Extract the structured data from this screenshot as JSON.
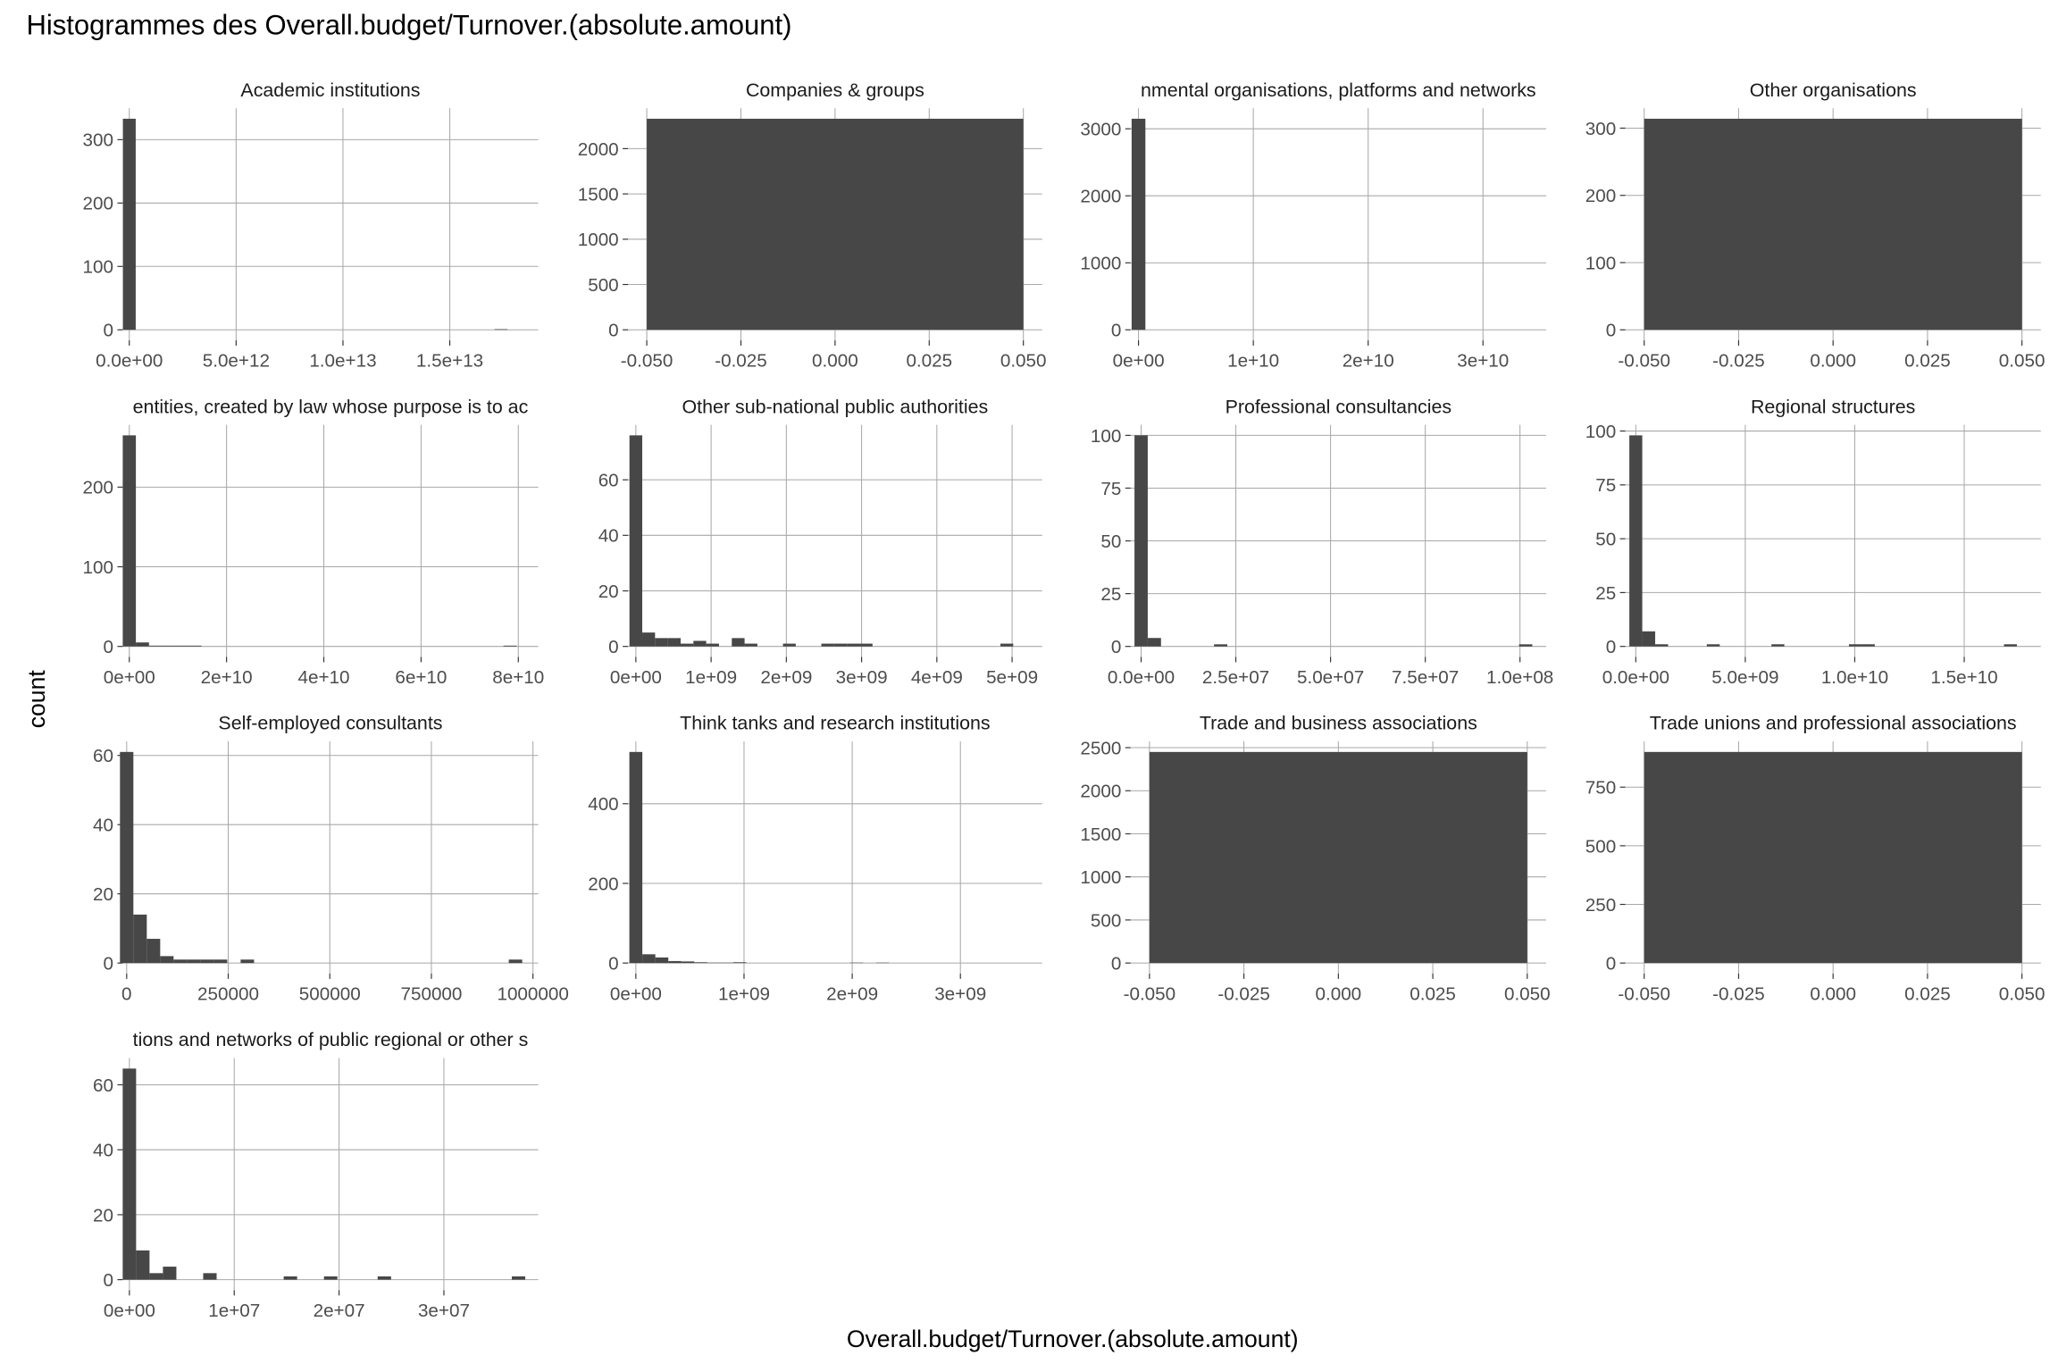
{
  "title": "Histogrammes des Overall.budget/Turnover.(absolute.amount)",
  "x_label": "Overall.budget/Turnover.(absolute.amount)",
  "y_label": "count",
  "chart_data": [
    {
      "type": "histogram",
      "title": "Academic institutions",
      "color": "#474747",
      "grid": true,
      "bins": [
        -300000000000.0,
        300000000000.0,
        900000000000.0,
        1500000000000.0,
        2100000000000.0,
        2700000000000.0,
        3300000000000.0,
        3900000000000.0,
        4500000000000.0,
        5100000000000.0,
        5700000000000.0,
        6300000000000.0,
        6900000000000.0,
        7500000000000.0,
        8100000000000.0,
        8700000000000.0,
        9300000000000.0,
        9900000000000.0,
        10500000000000.0,
        11100000000000.0,
        11700000000000.0,
        12300000000000.0,
        12900000000000.0,
        13500000000000.0,
        14100000000000.0,
        14700000000000.0,
        15300000000000.0,
        15900000000000.0,
        16500000000000.0,
        17100000000000.0,
        17700000000000.0
      ],
      "counts": [
        333,
        0,
        0,
        0,
        0,
        0,
        0,
        0,
        0,
        0,
        0,
        0,
        0,
        0,
        0,
        0,
        0,
        0,
        0,
        0,
        0,
        0,
        0,
        0,
        0,
        0,
        0,
        0,
        0,
        1
      ],
      "xlim": [
        -309000000000.0,
        19140000000000.0
      ],
      "ylim": [
        -16.65,
        349.65
      ],
      "xticks": [
        {
          "value": 0,
          "label": "0.0e+00"
        },
        {
          "value": 5000000000000.0,
          "label": "5.0e+12"
        },
        {
          "value": 10000000000000.0,
          "label": "1.0e+13"
        },
        {
          "value": 15000000000000.0,
          "label": "1.5e+13"
        }
      ],
      "yticks": [
        0,
        100,
        200,
        300
      ]
    },
    {
      "type": "histogram",
      "title": "Companies & groups",
      "color": "#474747",
      "grid": true,
      "bins": [
        -0.05,
        0.05
      ],
      "counts": [
        2330
      ],
      "xlim": [
        -0.055,
        0.055
      ],
      "ylim": [
        -116.5,
        2446.5
      ],
      "xticks": [
        {
          "value": -0.05,
          "label": "-0.050"
        },
        {
          "value": -0.025,
          "label": "-0.025"
        },
        {
          "value": 0,
          "label": "0.000"
        },
        {
          "value": 0.025,
          "label": "0.025"
        },
        {
          "value": 0.05,
          "label": "0.050"
        }
      ],
      "yticks": [
        0,
        500,
        1000,
        1500,
        2000
      ]
    },
    {
      "type": "histogram",
      "title": "nmental organisations, platforms and networks",
      "color": "#474747",
      "grid": true,
      "bins": [
        -600000000.0,
        600000000.0,
        1800000000.0,
        3000000000.0,
        4200000000.0,
        5400000000.0,
        6600000000.0,
        7800000000.0,
        9000000000.0,
        10200000000.0,
        11400000000.0,
        12600000000.0,
        13800000000.0,
        15000000000.0,
        16200000000.0,
        17400000000.0,
        18600000000.0,
        19800000000.0,
        21000000000.0,
        22200000000.0,
        23400000000.0,
        24600000000.0,
        25800000000.0,
        27000000000.0,
        28200000000.0,
        29400000000.0,
        30600000000.0,
        31800000000.0,
        33000000000.0,
        34200000000.0,
        35400000000.0
      ],
      "counts": [
        3150,
        0,
        0,
        0,
        0,
        0,
        0,
        0,
        0,
        0,
        0,
        0,
        0,
        0,
        0,
        0,
        0,
        0,
        0,
        0,
        0,
        0,
        0,
        0,
        0,
        0,
        0,
        0,
        0,
        0
      ],
      "xlim": [
        -690000000.0,
        35500000000.0
      ],
      "ylim": [
        -157.5,
        3307.5
      ],
      "xticks": [
        {
          "value": 0,
          "label": "0e+00"
        },
        {
          "value": 10000000000.0,
          "label": "1e+10"
        },
        {
          "value": 20000000000.0,
          "label": "2e+10"
        },
        {
          "value": 30000000000.0,
          "label": "3e+10"
        }
      ],
      "yticks": [
        0,
        1000,
        2000,
        3000
      ]
    },
    {
      "type": "histogram",
      "title": "Other organisations",
      "color": "#474747",
      "grid": true,
      "bins": [
        -0.05,
        0.05
      ],
      "counts": [
        314
      ],
      "xlim": [
        -0.055,
        0.055
      ],
      "ylim": [
        -15.7,
        329.7
      ],
      "xticks": [
        {
          "value": -0.05,
          "label": "-0.050"
        },
        {
          "value": -0.025,
          "label": "-0.025"
        },
        {
          "value": 0,
          "label": "0.000"
        },
        {
          "value": 0.025,
          "label": "0.025"
        },
        {
          "value": 0.05,
          "label": "0.050"
        }
      ],
      "yticks": [
        0,
        100,
        200,
        300
      ]
    },
    {
      "type": "histogram",
      "title": "entities, created by law whose purpose is to ac",
      "color": "#474747",
      "grid": true,
      "bins": [
        -1350000000.0,
        1350000000.0,
        4050000000.0,
        6750000000.0,
        9450000000.0,
        12150000000.0,
        14850000000.0,
        17550000000.0,
        20250000000.0,
        22950000000.0,
        25650000000.0,
        28350000000.0,
        31050000000.0,
        33750000000.0,
        36450000000.0,
        39150000000.0,
        41850000000.0,
        44550000000.0,
        47250000000.0,
        49950000000.0,
        52650000000.0,
        55350000000.0,
        58050000000.0,
        60750000000.0,
        63450000000.0,
        66150000000.0,
        68850000000.0,
        71550000000.0,
        74250000000.0,
        76950000000.0,
        79650000000.0
      ],
      "counts": [
        265,
        5,
        1,
        1,
        1,
        1,
        0,
        0,
        0,
        0,
        0,
        0,
        0,
        0,
        0,
        0,
        0,
        0,
        0,
        0,
        0,
        0,
        0,
        0,
        0,
        0,
        0,
        0,
        0,
        1
      ],
      "xlim": [
        -1360000000.0,
        84100000000.0
      ],
      "ylim": [
        -13.25,
        278.25
      ],
      "xticks": [
        {
          "value": 0,
          "label": "0e+00"
        },
        {
          "value": 20000000000.0,
          "label": "2e+10"
        },
        {
          "value": 40000000000.0,
          "label": "4e+10"
        },
        {
          "value": 60000000000.0,
          "label": "6e+10"
        },
        {
          "value": 80000000000.0,
          "label": "8e+10"
        }
      ],
      "yticks": [
        0,
        100,
        200
      ]
    },
    {
      "type": "histogram",
      "title": "Other sub-national public authorities",
      "color": "#474747",
      "grid": true,
      "bins": [
        -85000000.0,
        85000000.0,
        255000000.0,
        425000000.0,
        595000000.0,
        765000000.0,
        935000000.0,
        1105000000.0,
        1275000000.0,
        1445000000.0,
        1615000000.0,
        1785000000.0,
        1955000000.0,
        2125000000.0,
        2295000000.0,
        2465000000.0,
        2635000000.0,
        2805000000.0,
        2975000000.0,
        3145000000.0,
        3315000000.0,
        3485000000.0,
        3655000000.0,
        3825000000.0,
        3995000000.0,
        4165000000.0,
        4335000000.0,
        4505000000.0,
        4675000000.0,
        4845000000.0,
        5015000000.0
      ],
      "counts": [
        76,
        5,
        3,
        3,
        1,
        2,
        1,
        0,
        3,
        1,
        0,
        0,
        1,
        0,
        0,
        1,
        1,
        1,
        1,
        0,
        0,
        0,
        0,
        0,
        0,
        0,
        0,
        0,
        0,
        1
      ],
      "xlim": [
        -105000000.0,
        5400000000.0
      ],
      "ylim": [
        -3.8,
        79.8
      ],
      "xticks": [
        {
          "value": 0,
          "label": "0e+00"
        },
        {
          "value": 1000000000.0,
          "label": "1e+09"
        },
        {
          "value": 2000000000.0,
          "label": "2e+09"
        },
        {
          "value": 3000000000.0,
          "label": "3e+09"
        },
        {
          "value": 4000000000.0,
          "label": "4e+09"
        },
        {
          "value": 5000000000.0,
          "label": "5e+09"
        }
      ],
      "yticks": [
        0,
        20,
        40,
        60
      ]
    },
    {
      "type": "histogram",
      "title": "Professional consultancies",
      "color": "#474747",
      "grid": true,
      "bins": [
        -1750000.0,
        1750000.0,
        5250000.0,
        8750000.0,
        12250000.0,
        15750000.0,
        19250000.0,
        22750000.0,
        26250000.0,
        29750000.0,
        33250000.0,
        36750000.0,
        40250000.0,
        43750000.0,
        47250000.0,
        50750000.0,
        54250000.0,
        57750000.0,
        61250000.0,
        64750000.0,
        68250000.0,
        71750000.0,
        75250000.0,
        78750000.0,
        82250000.0,
        85750000.0,
        89250000.0,
        92750000.0,
        96250000.0,
        99750000.0,
        103250000.0
      ],
      "counts": [
        100,
        4,
        0,
        0,
        0,
        0,
        1,
        0,
        0,
        0,
        0,
        0,
        0,
        0,
        0,
        0,
        0,
        0,
        0,
        0,
        0,
        0,
        0,
        0,
        0,
        0,
        0,
        0,
        0,
        1
      ],
      "xlim": [
        -2780000.0,
        106900000.0
      ],
      "ylim": [
        -5,
        105
      ],
      "xticks": [
        {
          "value": 0,
          "label": "0.0e+00"
        },
        {
          "value": 25000000.0,
          "label": "2.5e+07"
        },
        {
          "value": 50000000.0,
          "label": "5.0e+07"
        },
        {
          "value": 75000000.0,
          "label": "7.5e+07"
        },
        {
          "value": 100000000.0,
          "label": "1.0e+08"
        }
      ],
      "yticks": [
        0,
        25,
        50,
        75,
        100
      ]
    },
    {
      "type": "histogram",
      "title": "Regional structures",
      "color": "#474747",
      "grid": true,
      "bins": [
        -295000000.0,
        295000000.0,
        885000000.0,
        1475000000.0,
        2065000000.0,
        2655000000.0,
        3245000000.0,
        3835000000.0,
        4425000000.0,
        5015000000.0,
        5605000000.0,
        6195000000.0,
        6785000000.0,
        7375000000.0,
        7965000000.0,
        8555000000.0,
        9145000000.0,
        9735000000.0,
        10325000000.0,
        10915000000.0,
        11505000000.0,
        12095000000.0,
        12685000000.0,
        13275000000.0,
        13865000000.0,
        14455000000.0,
        15045000000.0,
        15635000000.0,
        16225000000.0,
        16815000000.0,
        17405000000.0
      ],
      "counts": [
        98,
        7,
        1,
        0,
        0,
        0,
        1,
        0,
        0,
        0,
        0,
        1,
        0,
        0,
        0,
        0,
        0,
        1,
        1,
        0,
        0,
        0,
        0,
        0,
        0,
        0,
        0,
        0,
        0,
        1
      ],
      "xlim": [
        -480000000.0,
        18500000000.0
      ],
      "ylim": [
        -4.9,
        102.9
      ],
      "xticks": [
        {
          "value": 0,
          "label": "0.0e+00"
        },
        {
          "value": 5000000000.0,
          "label": "5.0e+09"
        },
        {
          "value": 10000000000.0,
          "label": "1.0e+10"
        },
        {
          "value": 15000000000.0,
          "label": "1.5e+10"
        }
      ],
      "yticks": [
        0,
        25,
        50,
        75,
        100
      ]
    },
    {
      "type": "histogram",
      "title": "Self-employed consultants",
      "color": "#474747",
      "grid": true,
      "bins": [
        -16500.0,
        16500.0,
        49500.0,
        82500.0,
        115500.0,
        148500.0,
        181500.0,
        214500.0,
        247500.0,
        280500.0,
        313500.0,
        346500.0,
        379500.0,
        412500.0,
        445500.0,
        478500.0,
        511500.0,
        544500.0,
        577500.0,
        610500.0,
        643500.0,
        676500.0,
        709500.0,
        742500.0,
        775500.0,
        808500.0,
        841500.0,
        874500.0,
        907500.0,
        940500.0,
        973500.0
      ],
      "counts": [
        61,
        14,
        7,
        2,
        1,
        1,
        1,
        1,
        0,
        1,
        0,
        0,
        0,
        0,
        0,
        0,
        0,
        0,
        0,
        0,
        0,
        0,
        0,
        0,
        0,
        0,
        0,
        0,
        0,
        1
      ],
      "xlim": [
        -9800,
        1013000
      ],
      "ylim": [
        -3.05,
        64.05
      ],
      "xticks": [
        0,
        250000,
        500000,
        750000,
        1000000
      ],
      "yticks": [
        0,
        20,
        40,
        60
      ]
    },
    {
      "type": "histogram",
      "title": "Think tanks and research institutions",
      "color": "#474747",
      "grid": true,
      "bins": [
        -60000000.0,
        60000000.0,
        180000000.0,
        300000000.0,
        420000000.0,
        540000000.0,
        660000000.0,
        780000000.0,
        900000000.0,
        1020000000.0,
        1140000000.0,
        1260000000.0,
        1380000000.0,
        1500000000.0,
        1620000000.0,
        1740000000.0,
        1860000000.0,
        1980000000.0,
        2100000000.0,
        2220000000.0,
        2340000000.0,
        2460000000.0,
        2580000000.0,
        2700000000.0,
        2820000000.0,
        2940000000.0,
        3060000000.0,
        3180000000.0,
        3300000000.0,
        3420000000.0,
        3540000000.0
      ],
      "counts": [
        530,
        22,
        14,
        5,
        4,
        2,
        1,
        1,
        2,
        0,
        0,
        0,
        0,
        0,
        0,
        0,
        0,
        1,
        0,
        1,
        0,
        0,
        0,
        0,
        0,
        0,
        0,
        0,
        0,
        0
      ],
      "xlim": [
        -73000000.0,
        3756000000.0
      ],
      "ylim": [
        -26.5,
        556.5
      ],
      "xticks": [
        {
          "value": 0,
          "label": "0e+00"
        },
        {
          "value": 1000000000.0,
          "label": "1e+09"
        },
        {
          "value": 2000000000.0,
          "label": "2e+09"
        },
        {
          "value": 3000000000.0,
          "label": "3e+09"
        }
      ],
      "yticks": [
        0,
        200,
        400
      ]
    },
    {
      "type": "histogram",
      "title": "Trade and business associations",
      "color": "#474747",
      "grid": true,
      "bins": [
        -0.05,
        0.05
      ],
      "counts": [
        2450
      ],
      "xlim": [
        -0.055,
        0.055
      ],
      "ylim": [
        -122.5,
        2572.5
      ],
      "xticks": [
        {
          "value": -0.05,
          "label": "-0.050"
        },
        {
          "value": -0.025,
          "label": "-0.025"
        },
        {
          "value": 0,
          "label": "0.000"
        },
        {
          "value": 0.025,
          "label": "0.025"
        },
        {
          "value": 0.05,
          "label": "0.050"
        }
      ],
      "yticks": [
        0,
        500,
        1000,
        1500,
        2000,
        2500
      ]
    },
    {
      "type": "histogram",
      "title": "Trade unions and professional associations",
      "color": "#474747",
      "grid": true,
      "bins": [
        -0.05,
        0.05
      ],
      "counts": [
        900
      ],
      "xlim": [
        -0.055,
        0.055
      ],
      "ylim": [
        -45,
        945
      ],
      "xticks": [
        {
          "value": -0.05,
          "label": "-0.050"
        },
        {
          "value": -0.025,
          "label": "-0.025"
        },
        {
          "value": 0,
          "label": "0.000"
        },
        {
          "value": 0.025,
          "label": "0.025"
        },
        {
          "value": 0.05,
          "label": "0.050"
        }
      ],
      "yticks": [
        0,
        250,
        500,
        750
      ]
    },
    {
      "type": "histogram",
      "title": "tions and networks of public regional or other s",
      "color": "#474747",
      "grid": true,
      "bins": [
        -640000.0,
        640000.0,
        1920000.0,
        3200000.0,
        4480000.0,
        5760000.0,
        7040000.0,
        8320000.0,
        9600000.0,
        10880000.0,
        12160000.0,
        13440000.0,
        14720000.0,
        16000000.0,
        17280000.0,
        18560000.0,
        19840000.0,
        21120000.0,
        22400000.0,
        23680000.0,
        24960000.0,
        26240000.0,
        27520000.0,
        28800000.0,
        30080000.0,
        31360000.0,
        32640000.0,
        33920000.0,
        35200000.0,
        36480000.0,
        37760000.0
      ],
      "counts": [
        65,
        9,
        2,
        4,
        0,
        0,
        2,
        0,
        0,
        0,
        0,
        0,
        1,
        0,
        0,
        1,
        0,
        0,
        0,
        1,
        0,
        0,
        0,
        0,
        0,
        0,
        0,
        0,
        0,
        1
      ],
      "xlim": [
        -640000.0,
        39000000.0
      ],
      "ylim": [
        -3.25,
        68.25
      ],
      "xticks": [
        {
          "value": 0,
          "label": "0e+00"
        },
        {
          "value": 10000000.0,
          "label": "1e+07"
        },
        {
          "value": 20000000.0,
          "label": "2e+07"
        },
        {
          "value": 30000000.0,
          "label": "3e+07"
        }
      ],
      "yticks": [
        0,
        20,
        40,
        60
      ]
    }
  ]
}
